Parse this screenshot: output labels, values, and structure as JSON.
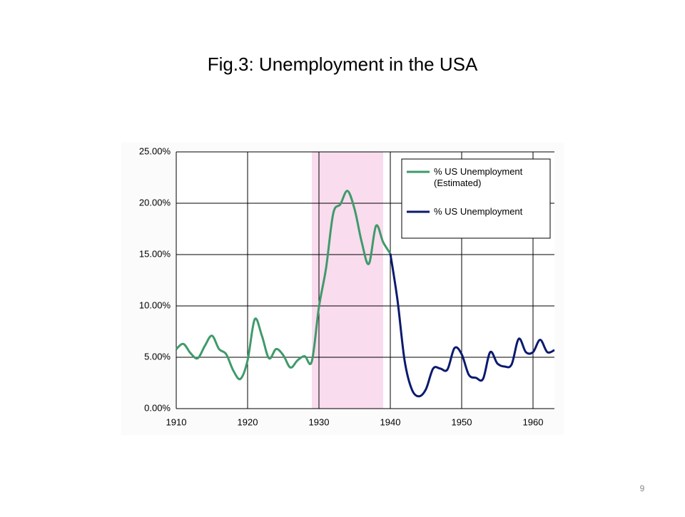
{
  "chart_data": {
    "type": "line",
    "title": "Fig.3: Unemployment in the USA",
    "x": [
      1910,
      1911,
      1912,
      1913,
      1914,
      1915,
      1916,
      1917,
      1918,
      1919,
      1920,
      1921,
      1922,
      1923,
      1924,
      1925,
      1926,
      1927,
      1928,
      1929,
      1930,
      1931,
      1932,
      1933,
      1934,
      1935,
      1936,
      1937,
      1938,
      1939,
      1940,
      1941,
      1942,
      1943,
      1944,
      1945,
      1946,
      1947,
      1948,
      1949,
      1950,
      1951,
      1952,
      1953,
      1954,
      1955,
      1956,
      1957,
      1958,
      1959,
      1960,
      1961,
      1962,
      1963
    ],
    "series": [
      {
        "name": "% US Unemployment (Estimated)",
        "color": "#3f9a6a",
        "values": [
          5.8,
          6.3,
          5.4,
          4.9,
          6.1,
          7.1,
          5.8,
          5.3,
          3.7,
          2.9,
          4.7,
          8.7,
          7.1,
          4.9,
          5.8,
          5.2,
          4.0,
          4.7,
          5.1,
          4.6,
          9.9,
          13.7,
          19.0,
          19.9,
          21.2,
          19.4,
          16.2,
          14.1,
          17.8,
          16.2,
          15.1,
          null,
          null,
          null,
          null,
          null,
          null,
          null,
          null,
          null,
          null,
          null,
          null,
          null,
          null,
          null,
          null,
          null,
          null,
          null,
          null,
          null,
          null,
          null
        ]
      },
      {
        "name": "% US Unemployment",
        "color": "#0b1a6e",
        "values": [
          null,
          null,
          null,
          null,
          null,
          null,
          null,
          null,
          null,
          null,
          null,
          null,
          null,
          null,
          null,
          null,
          null,
          null,
          null,
          null,
          null,
          null,
          null,
          null,
          null,
          null,
          null,
          null,
          null,
          null,
          15.1,
          10.6,
          4.7,
          1.9,
          1.2,
          1.9,
          3.9,
          3.9,
          3.8,
          5.9,
          5.3,
          3.3,
          3.0,
          2.9,
          5.5,
          4.4,
          4.1,
          4.3,
          6.8,
          5.5,
          5.5,
          6.7,
          5.5,
          5.7
        ]
      }
    ],
    "xlim": [
      1910,
      1963
    ],
    "xticks": [
      1910,
      1920,
      1930,
      1940,
      1950,
      1960
    ],
    "ylim": [
      0,
      25
    ],
    "yticks": [
      {
        "value": 0,
        "label": "0.00%"
      },
      {
        "value": 5,
        "label": "5.00%"
      },
      {
        "value": 10,
        "label": "10.00%"
      },
      {
        "value": 15,
        "label": "15.00%"
      },
      {
        "value": 20,
        "label": "20.00%"
      },
      {
        "value": 25,
        "label": "25.00%"
      }
    ],
    "shaded_span": [
      1929,
      1939
    ],
    "shade_color": "#f9dcee",
    "grid": true
  },
  "page_number": "9"
}
